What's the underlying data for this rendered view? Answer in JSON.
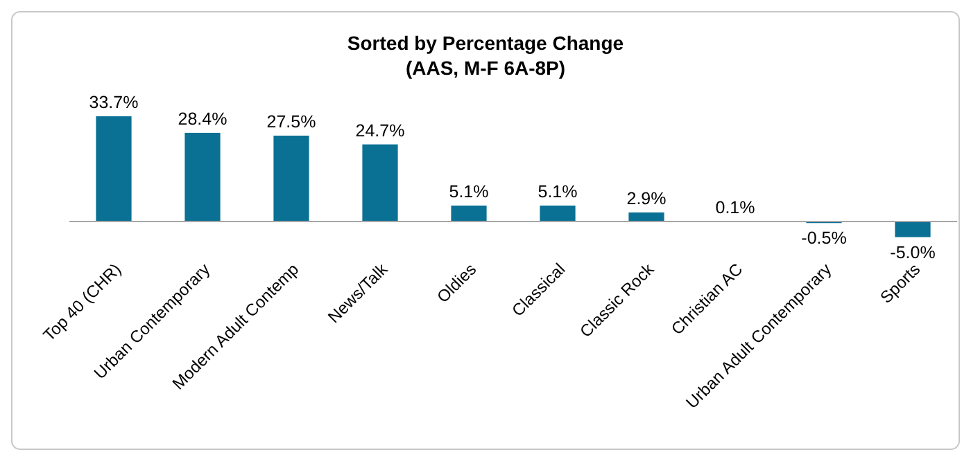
{
  "chart_data": {
    "type": "bar",
    "title": "Sorted by Percentage Change",
    "subtitle": "(AAS, M-F 6A-8P)",
    "categories": [
      "Top 40 (CHR)",
      "Urban Contemporary",
      "Modern Adult Contemp",
      "News/Talk",
      "Oldies",
      "Classical",
      "Classic Rock",
      "Christian AC",
      "Urban Adult Contemporary",
      "Sports"
    ],
    "values": [
      33.7,
      28.4,
      27.5,
      24.7,
      5.1,
      5.1,
      2.9,
      0.1,
      -0.5,
      -5.0
    ],
    "value_labels": [
      "33.7%",
      "28.4%",
      "27.5%",
      "24.7%",
      "5.1%",
      "5.1%",
      "2.9%",
      "0.1%",
      "-0.5%",
      "-5.0%"
    ],
    "color": "#0a7194"
  }
}
